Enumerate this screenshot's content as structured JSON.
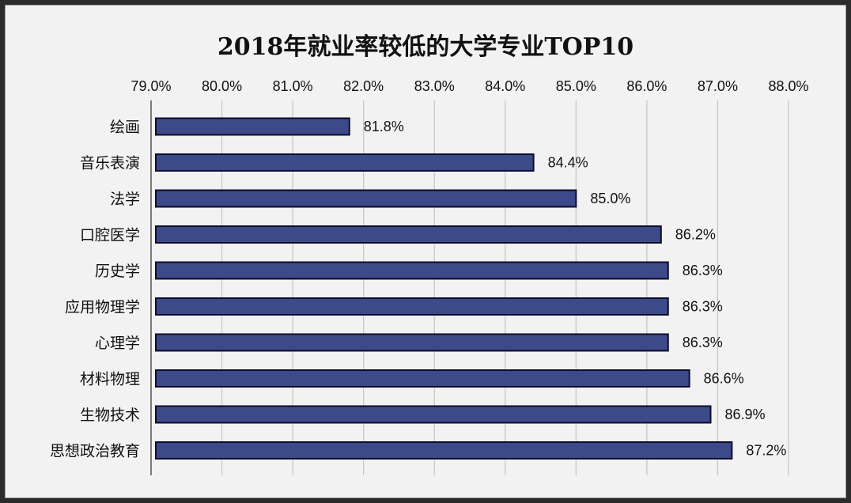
{
  "chart_data": {
    "type": "bar",
    "orientation": "horizontal",
    "title": "2018年就业率较低的大学专业TOP10",
    "categories": [
      "绘画",
      "音乐表演",
      "法学",
      "口腔医学",
      "历史学",
      "应用物理学",
      "心理学",
      "材料物理",
      "生物技术",
      "思想政治教育"
    ],
    "values": [
      81.8,
      84.4,
      85.0,
      86.2,
      86.3,
      86.3,
      86.3,
      86.6,
      86.9,
      87.2
    ],
    "value_labels": [
      "81.8%",
      "84.4%",
      "85.0%",
      "86.2%",
      "86.3%",
      "86.3%",
      "86.3%",
      "86.6%",
      "86.9%",
      "87.2%"
    ],
    "tick_values": [
      79,
      80,
      81,
      82,
      83,
      84,
      85,
      86,
      87,
      88
    ],
    "tick_labels": [
      "79.0%",
      "80.0%",
      "81.0%",
      "82.0%",
      "83.0%",
      "84.0%",
      "85.0%",
      "86.0%",
      "87.0%",
      "88.0%"
    ],
    "xlim": [
      79,
      88
    ],
    "xaxis_position": "top",
    "grid": true,
    "legend": "none",
    "xlabel": "",
    "ylabel": "",
    "bar_color": "#3d4a8a",
    "bar_edge_color": "#0d0d2a"
  }
}
